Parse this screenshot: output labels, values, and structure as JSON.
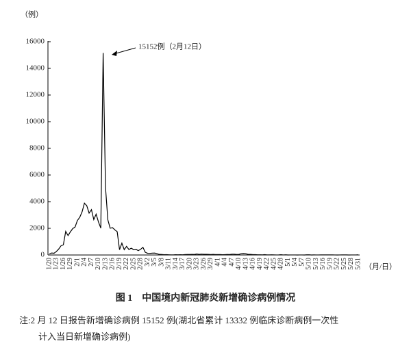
{
  "chart_data": {
    "type": "line",
    "y_unit": "（例）",
    "x_unit": "（月/日）",
    "annotation": "15152例（2月12日）",
    "caption": "图 1　中国境内新冠肺炎新增确诊病例情况",
    "note": [
      "注:2 月 12 日报告新增确诊病例 15152 例(湖北省累计 13332 例临床诊断病例一次性",
      "计入当日新增确诊病例)"
    ],
    "color": "#000000",
    "ylim": [
      0,
      16000
    ],
    "yticks": [
      0,
      2000,
      4000,
      6000,
      8000,
      10000,
      12000,
      14000,
      16000
    ],
    "grid": false,
    "categories": [
      "1/20",
      null,
      null,
      "1/23",
      null,
      null,
      "1/26",
      null,
      null,
      "1/29",
      null,
      null,
      "2/1",
      null,
      null,
      "2/4",
      null,
      null,
      "2/7",
      null,
      null,
      "2/10",
      null,
      null,
      "2/13",
      null,
      null,
      "2/16",
      null,
      null,
      "2/19",
      null,
      null,
      "2/22",
      null,
      null,
      "2/25",
      null,
      null,
      "2/28",
      null,
      null,
      "3/2",
      null,
      null,
      "3/5",
      null,
      null,
      "3/8",
      null,
      null,
      "3/11",
      null,
      null,
      "3/14",
      null,
      null,
      "3/17",
      null,
      null,
      "3/20",
      null,
      null,
      "3/23",
      null,
      null,
      "3/26",
      null,
      null,
      "3/29",
      null,
      null,
      "4/1",
      null,
      null,
      "4/4",
      null,
      null,
      "4/7",
      null,
      null,
      "4/10",
      null,
      null,
      "4/13",
      null,
      null,
      "4/16",
      null,
      null,
      "4/19",
      null,
      null,
      "4/22",
      null,
      null,
      "4/25",
      null,
      null,
      "4/28",
      null,
      null,
      "5/1",
      null,
      null,
      "5/4",
      null,
      null,
      "5/7",
      null,
      null,
      "5/10",
      null,
      null,
      "5/13",
      null,
      null,
      "5/16",
      null,
      null,
      "5/19",
      null,
      null,
      "5/22",
      null,
      null,
      "5/25",
      null,
      null,
      "5/28",
      null,
      null,
      "5/31"
    ],
    "values": [
      77,
      149,
      131,
      259,
      444,
      688,
      769,
      1771,
      1459,
      1737,
      1981,
      2099,
      2590,
      2829,
      3235,
      3887,
      3694,
      3143,
      3399,
      2656,
      3062,
      2478,
      2015,
      15152,
      5090,
      2641,
      2009,
      2048,
      1886,
      1749,
      394,
      889,
      397,
      648,
      409,
      508,
      406,
      433,
      327,
      427,
      573,
      202,
      125,
      119,
      139,
      143,
      99,
      44,
      40,
      19,
      24,
      15,
      8,
      11,
      20,
      16,
      21,
      13,
      34,
      39,
      41,
      46,
      39,
      78,
      47,
      67,
      55,
      54,
      45,
      31,
      48,
      36,
      35,
      31,
      19,
      30,
      39,
      32,
      62,
      62,
      42,
      46,
      99,
      108,
      89,
      46,
      46,
      26,
      27,
      16,
      12,
      11,
      30,
      10,
      10,
      12,
      11,
      3,
      6,
      22,
      4,
      12,
      1,
      2,
      3,
      2,
      1,
      2,
      4,
      1,
      14,
      17,
      1,
      7,
      3,
      4,
      5,
      8,
      7,
      6,
      6,
      5,
      4,
      0,
      3,
      11,
      7,
      7,
      1,
      4,
      2,
      4,
      16
    ]
  }
}
